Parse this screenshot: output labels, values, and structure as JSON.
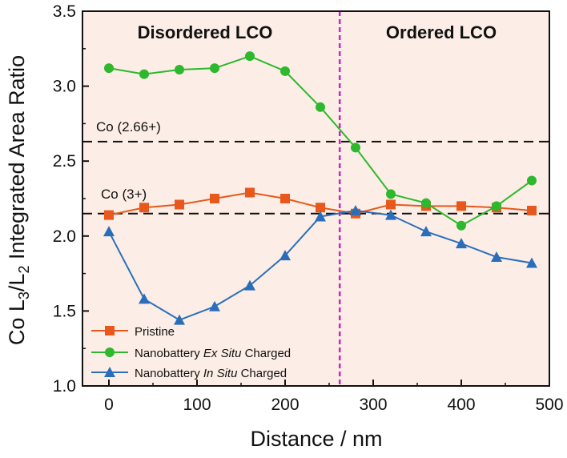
{
  "chart_data": {
    "type": "line",
    "xlabel": "Distance / nm",
    "ylabel": {
      "prefix": "Co L",
      "sub1": "3",
      "mid": "/L",
      "sub2": "2",
      "suffix": " Integrated Area Ratio"
    },
    "xlim": [
      -30,
      500
    ],
    "ylim": [
      1.0,
      3.5
    ],
    "xticks": [
      0,
      100,
      200,
      300,
      400,
      500
    ],
    "xtick_labels": [
      "0",
      "100",
      "200",
      "300",
      "400",
      "500"
    ],
    "yticks": [
      1.0,
      1.5,
      2.0,
      2.5,
      3.0,
      3.5
    ],
    "ytick_labels": [
      "1.0",
      "1.5",
      "2.0",
      "2.5",
      "3.0",
      "3.5"
    ],
    "regions": [
      {
        "label": "Disordered LCO",
        "from": -30,
        "to": 262
      },
      {
        "label": "Ordered LCO",
        "from": 262,
        "to": 500
      }
    ],
    "divider_x": 262,
    "reference_lines": [
      {
        "label": "Co (2.66+)",
        "y": 2.63
      },
      {
        "label": "Co (3+)",
        "y": 2.15
      }
    ],
    "series": [
      {
        "name": "Pristine",
        "legend": {
          "pre": "Pristine",
          "em": "",
          "post": ""
        },
        "color": "#e8581c",
        "marker": "square",
        "x": [
          0,
          40,
          80,
          120,
          160,
          200,
          240,
          280,
          320,
          360,
          400,
          440,
          480
        ],
        "values": [
          2.14,
          2.19,
          2.21,
          2.25,
          2.29,
          2.25,
          2.19,
          2.15,
          2.21,
          2.2,
          2.2,
          2.19,
          2.17
        ]
      },
      {
        "name": "Nanobattery Ex Situ Charged",
        "legend": {
          "pre": "Nanobattery ",
          "em": "Ex Situ",
          "post": " Charged"
        },
        "color": "#2db82d",
        "marker": "circle",
        "x": [
          0,
          40,
          80,
          120,
          160,
          200,
          240,
          280,
          320,
          360,
          400,
          440,
          480
        ],
        "values": [
          3.12,
          3.08,
          3.11,
          3.12,
          3.2,
          3.1,
          2.86,
          2.59,
          2.28,
          2.22,
          2.07,
          2.2,
          2.37
        ]
      },
      {
        "name": "Nanobattery In Situ Charged",
        "legend": {
          "pre": "Nanobattery ",
          "em": "In Situ",
          "post": " Charged"
        },
        "color": "#2a6ebb",
        "marker": "triangle",
        "x": [
          0,
          40,
          80,
          120,
          160,
          200,
          240,
          280,
          320,
          360,
          400,
          440,
          480
        ],
        "values": [
          2.03,
          1.58,
          1.44,
          1.53,
          1.67,
          1.87,
          2.13,
          2.17,
          2.14,
          2.03,
          1.95,
          1.86,
          1.82
        ]
      }
    ],
    "colors": {
      "background": "#fceee6",
      "divider": "#cc22cc",
      "reference": "#111111"
    }
  }
}
